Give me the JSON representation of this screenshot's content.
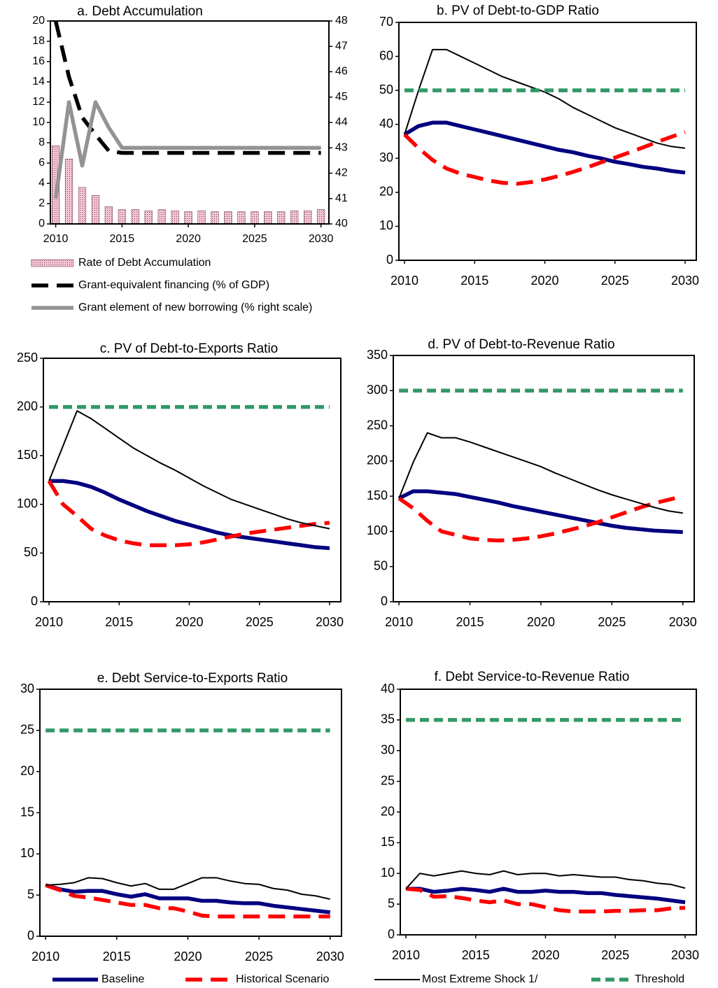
{
  "chart_data": [
    {
      "type": "combo",
      "title": "a. Debt Accumulation",
      "x": [
        2010,
        2011,
        2012,
        2013,
        2014,
        2015,
        2016,
        2017,
        2018,
        2019,
        2020,
        2021,
        2022,
        2023,
        2024,
        2025,
        2026,
        2027,
        2028,
        2029,
        2030
      ],
      "xlim": [
        2009.6,
        2030.6
      ],
      "xticks": [
        2010,
        2015,
        2020,
        2025,
        2030
      ],
      "ylim": [
        0,
        20
      ],
      "yticks": [
        0,
        2,
        4,
        6,
        8,
        10,
        12,
        14,
        16,
        18,
        20
      ],
      "y2lim": [
        40,
        48
      ],
      "y2ticks": [
        40,
        41,
        42,
        43,
        44,
        45,
        46,
        47,
        48
      ],
      "series": [
        {
          "name": "Rate of Debt Accumulation",
          "type": "bar",
          "color": "#f4c6d6",
          "values": [
            7.7,
            6.4,
            3.6,
            2.8,
            1.7,
            1.4,
            1.4,
            1.3,
            1.4,
            1.3,
            1.2,
            1.3,
            1.2,
            1.2,
            1.2,
            1.2,
            1.2,
            1.2,
            1.3,
            1.3,
            1.4
          ]
        },
        {
          "name": "Grant-equivalent financing (% of GDP)",
          "type": "line",
          "color": "#000000",
          "dash": "long",
          "weight": "heavy",
          "values": [
            20,
            14.5,
            10.5,
            8.8,
            7.2,
            7.0,
            7.0,
            7.0,
            7.0,
            7.0,
            7.0,
            7.0,
            7.0,
            7.0,
            7.0,
            7.0,
            7.0,
            7.0,
            7.0,
            7.0,
            7.0
          ]
        },
        {
          "name": "Grant element of new borrowing (% right scale)",
          "type": "line",
          "color": "#939393",
          "dash": "none",
          "weight": "heavy",
          "axis": "y2",
          "values": [
            41.0,
            44.8,
            42.3,
            44.8,
            43.8,
            43.0,
            43.0,
            43.0,
            43.0,
            43.0,
            43.0,
            43.0,
            43.0,
            43.0,
            43.0,
            43.0,
            43.0,
            43.0,
            43.0,
            43.0,
            43.0
          ]
        }
      ]
    },
    {
      "type": "line",
      "title": "b. PV of Debt-to-GDP Ratio",
      "x": [
        2010,
        2011,
        2012,
        2013,
        2014,
        2015,
        2016,
        2017,
        2018,
        2019,
        2020,
        2021,
        2022,
        2023,
        2024,
        2025,
        2026,
        2027,
        2028,
        2029,
        2030
      ],
      "xlim": [
        2009.6,
        2030.8
      ],
      "xticks": [
        2010,
        2015,
        2020,
        2025,
        2030
      ],
      "ylim": [
        0,
        70
      ],
      "yticks": [
        0,
        10,
        20,
        30,
        40,
        50,
        60,
        70
      ],
      "series": [
        {
          "name": "Baseline",
          "color": "#000080",
          "dash": "none",
          "weight": "heavy",
          "values": [
            37,
            39.5,
            40.5,
            40.5,
            39.5,
            38.5,
            37.5,
            36.5,
            35.5,
            34.5,
            33.5,
            32.5,
            31.8,
            30.8,
            30,
            29,
            28.3,
            27.5,
            27,
            26.3,
            25.8
          ]
        },
        {
          "name": "Historical Scenario",
          "color": "#ff0000",
          "dash": "long",
          "weight": "heavy",
          "values": [
            37,
            33,
            29.5,
            27,
            25.5,
            24.5,
            23.5,
            22.8,
            22.5,
            23,
            23.8,
            24.8,
            26,
            27.3,
            28.8,
            30.2,
            31.7,
            33.2,
            34.8,
            36.3,
            37.7
          ]
        },
        {
          "name": "Most Extreme Shock  1/",
          "color": "#000000",
          "dash": "none",
          "weight": "thin",
          "values": [
            37,
            50,
            62,
            62,
            60,
            58,
            56,
            54,
            52.5,
            51,
            49.5,
            47.5,
            45,
            43,
            41,
            39,
            37.5,
            36,
            34.5,
            33.5,
            33
          ]
        },
        {
          "name": "Threshold",
          "color": "#339966",
          "dash": "short",
          "weight": "heavy",
          "values": [
            50,
            50,
            50,
            50,
            50,
            50,
            50,
            50,
            50,
            50,
            50,
            50,
            50,
            50,
            50,
            50,
            50,
            50,
            50,
            50,
            50
          ]
        }
      ]
    },
    {
      "type": "line",
      "title": "c. PV of Debt-to-Exports Ratio",
      "x": [
        2010,
        2011,
        2012,
        2013,
        2014,
        2015,
        2016,
        2017,
        2018,
        2019,
        2020,
        2021,
        2022,
        2023,
        2024,
        2025,
        2026,
        2027,
        2028,
        2029,
        2030
      ],
      "xlim": [
        2009.6,
        2030.8
      ],
      "xticks": [
        2010,
        2015,
        2020,
        2025,
        2030
      ],
      "ylim": [
        0,
        250
      ],
      "yticks": [
        0,
        50,
        100,
        150,
        200,
        250
      ],
      "series": [
        {
          "color": "#000080",
          "dash": "none",
          "weight": "heavy",
          "values": [
            124,
            124,
            122,
            118,
            112,
            105,
            99,
            93,
            88,
            83,
            79,
            75,
            71,
            68,
            66,
            64,
            62,
            60,
            58,
            56,
            55
          ]
        },
        {
          "color": "#ff0000",
          "dash": "long",
          "weight": "heavy",
          "values": [
            124,
            100,
            88,
            75,
            68,
            63,
            60,
            58,
            58,
            58,
            59,
            61,
            64,
            67,
            70,
            72,
            74,
            76,
            78,
            80,
            81
          ]
        },
        {
          "color": "#000000",
          "dash": "none",
          "weight": "thin",
          "values": [
            124,
            160,
            196,
            188,
            178,
            168,
            158,
            150,
            142,
            135,
            127,
            119,
            112,
            105,
            100,
            95,
            90,
            85,
            81,
            78,
            75
          ]
        },
        {
          "color": "#339966",
          "dash": "short",
          "weight": "heavy",
          "values": [
            200,
            200,
            200,
            200,
            200,
            200,
            200,
            200,
            200,
            200,
            200,
            200,
            200,
            200,
            200,
            200,
            200,
            200,
            200,
            200,
            200
          ]
        }
      ]
    },
    {
      "type": "line",
      "title": "d. PV of Debt-to-Revenue Ratio",
      "x": [
        2010,
        2011,
        2012,
        2013,
        2014,
        2015,
        2016,
        2017,
        2018,
        2019,
        2020,
        2021,
        2022,
        2023,
        2024,
        2025,
        2026,
        2027,
        2028,
        2029,
        2030
      ],
      "xlim": [
        2009.6,
        2030.8
      ],
      "xticks": [
        2010,
        2015,
        2020,
        2025,
        2030
      ],
      "ylim": [
        0,
        350
      ],
      "yticks": [
        0,
        50,
        100,
        150,
        200,
        250,
        300,
        350
      ],
      "series": [
        {
          "color": "#000080",
          "dash": "none",
          "weight": "heavy",
          "values": [
            147,
            157,
            157,
            155,
            153,
            149,
            145,
            141,
            136,
            132,
            128,
            124,
            120,
            116,
            112,
            108,
            105,
            103,
            101,
            100,
            99
          ]
        },
        {
          "color": "#ff0000",
          "dash": "long",
          "weight": "heavy",
          "values": [
            147,
            133,
            115,
            100,
            95,
            90,
            88,
            87,
            88,
            90,
            93,
            97,
            102,
            107,
            113,
            120,
            127,
            134,
            140,
            145,
            150
          ]
        },
        {
          "color": "#000000",
          "dash": "none",
          "weight": "thin",
          "values": [
            147,
            198,
            240,
            233,
            233,
            227,
            220,
            213,
            206,
            199,
            192,
            183,
            175,
            167,
            159,
            152,
            146,
            140,
            134,
            129,
            126
          ]
        },
        {
          "color": "#339966",
          "dash": "short",
          "weight": "heavy",
          "values": [
            300,
            300,
            300,
            300,
            300,
            300,
            300,
            300,
            300,
            300,
            300,
            300,
            300,
            300,
            300,
            300,
            300,
            300,
            300,
            300,
            300
          ]
        }
      ]
    },
    {
      "type": "line",
      "title": "e. Debt Service-to-Exports Ratio",
      "x": [
        2010,
        2011,
        2012,
        2013,
        2014,
        2015,
        2016,
        2017,
        2018,
        2019,
        2020,
        2021,
        2022,
        2023,
        2024,
        2025,
        2026,
        2027,
        2028,
        2029,
        2030
      ],
      "xlim": [
        2009.6,
        2030.8
      ],
      "xticks": [
        2010,
        2015,
        2020,
        2025,
        2030
      ],
      "ylim": [
        0,
        30
      ],
      "yticks": [
        0,
        5,
        10,
        15,
        20,
        25,
        30
      ],
      "series": [
        {
          "color": "#000080",
          "dash": "none",
          "weight": "heavy",
          "values": [
            6.2,
            5.7,
            5.4,
            5.5,
            5.5,
            5.1,
            4.8,
            5.1,
            4.6,
            4.6,
            4.6,
            4.3,
            4.3,
            4.1,
            4.0,
            4.0,
            3.7,
            3.5,
            3.3,
            3.1,
            2.9
          ]
        },
        {
          "color": "#ff0000",
          "dash": "long",
          "weight": "heavy",
          "values": [
            6.2,
            5.6,
            4.9,
            4.7,
            4.4,
            4.1,
            3.8,
            3.8,
            3.4,
            3.4,
            3.0,
            2.5,
            2.4,
            2.4,
            2.4,
            2.4,
            2.4,
            2.4,
            2.4,
            2.4,
            2.4
          ]
        },
        {
          "color": "#000000",
          "dash": "none",
          "weight": "thin",
          "values": [
            6.2,
            6.3,
            6.5,
            7.1,
            7.0,
            6.5,
            6.1,
            6.4,
            5.7,
            5.7,
            6.4,
            7.1,
            7.1,
            6.7,
            6.4,
            6.3,
            5.8,
            5.6,
            5.1,
            4.9,
            4.5
          ]
        },
        {
          "color": "#339966",
          "dash": "short",
          "weight": "heavy",
          "values": [
            25,
            25,
            25,
            25,
            25,
            25,
            25,
            25,
            25,
            25,
            25,
            25,
            25,
            25,
            25,
            25,
            25,
            25,
            25,
            25,
            25
          ]
        }
      ]
    },
    {
      "type": "line",
      "title": "f. Debt Service-to-Revenue Ratio",
      "x": [
        2010,
        2011,
        2012,
        2013,
        2014,
        2015,
        2016,
        2017,
        2018,
        2019,
        2020,
        2021,
        2022,
        2023,
        2024,
        2025,
        2026,
        2027,
        2028,
        2029,
        2030
      ],
      "xlim": [
        2009.6,
        2030.8
      ],
      "xticks": [
        2010,
        2015,
        2020,
        2025,
        2030
      ],
      "ylim": [
        0,
        40
      ],
      "yticks": [
        0,
        5,
        10,
        15,
        20,
        25,
        30,
        35,
        40
      ],
      "series": [
        {
          "color": "#000080",
          "dash": "none",
          "weight": "heavy",
          "values": [
            7.5,
            7.5,
            7.0,
            7.2,
            7.5,
            7.3,
            7.0,
            7.5,
            7.0,
            7.0,
            7.2,
            7.0,
            7.0,
            6.8,
            6.8,
            6.5,
            6.3,
            6.1,
            5.9,
            5.6,
            5.3
          ]
        },
        {
          "color": "#ff0000",
          "dash": "long",
          "weight": "heavy",
          "values": [
            7.5,
            7.3,
            6.2,
            6.3,
            6.0,
            5.6,
            5.3,
            5.6,
            5.0,
            5.0,
            4.5,
            4.0,
            3.8,
            3.8,
            3.8,
            3.9,
            3.9,
            4.0,
            4.0,
            4.3,
            4.4
          ]
        },
        {
          "color": "#000000",
          "dash": "none",
          "weight": "thin",
          "values": [
            7.5,
            10,
            9.6,
            10,
            10.4,
            10,
            9.8,
            10.4,
            9.8,
            10,
            10,
            9.6,
            9.8,
            9.6,
            9.4,
            9.4,
            9.0,
            8.8,
            8.4,
            8.2,
            7.6
          ]
        },
        {
          "color": "#339966",
          "dash": "short",
          "weight": "heavy",
          "values": [
            35,
            35,
            35,
            35,
            35,
            35,
            35,
            35,
            35,
            35,
            35,
            35,
            35,
            35,
            35,
            35,
            35,
            35,
            35,
            35,
            35
          ]
        }
      ]
    }
  ]
}
